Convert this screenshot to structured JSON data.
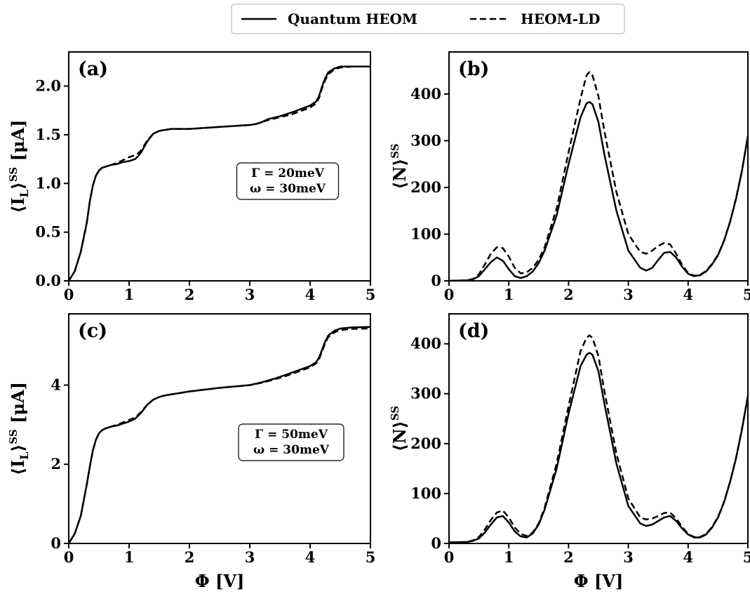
{
  "legend": {
    "entries": [
      {
        "label": "Quantum HEOM",
        "dash": "solid"
      },
      {
        "label": "HEOM-LD",
        "dash": "dashed"
      }
    ],
    "placement": "top-center"
  },
  "chart_data": [
    {
      "type": "line",
      "panel_label": "(a)",
      "xlabel": "",
      "ylabel": "⟨I_L⟩^SS [μA]",
      "ylabel_main": "⟨I",
      "ylabel_sub": "L",
      "ylabel_close": "⟩",
      "ylabel_sup": "SS",
      "ylabel_unit": " [μA]",
      "xlim": [
        0,
        5
      ],
      "ylim": [
        0,
        2.35
      ],
      "xticks": [
        0,
        1,
        2,
        3,
        4,
        5
      ],
      "yticks": [
        0.0,
        0.5,
        1.0,
        1.5,
        2.0
      ],
      "ytick_labels": [
        "0.0",
        "0.5",
        "1.0",
        "1.5",
        "2.0"
      ],
      "annotation": [
        "Γ = 20meV",
        "ω = 30meV"
      ],
      "grid": false,
      "series": [
        {
          "name": "Quantum HEOM",
          "dash": "solid",
          "x": [
            0,
            0.1,
            0.2,
            0.3,
            0.35,
            0.4,
            0.45,
            0.5,
            0.55,
            0.6,
            0.7,
            0.8,
            0.9,
            1.0,
            1.1,
            1.15,
            1.2,
            1.3,
            1.4,
            1.5,
            1.7,
            2.0,
            2.5,
            3.0,
            3.1,
            3.2,
            3.3,
            3.5,
            3.7,
            4.0,
            4.1,
            4.15,
            4.2,
            4.25,
            4.3,
            4.4,
            4.5,
            4.7,
            5.0
          ],
          "y": [
            0.0,
            0.1,
            0.3,
            0.6,
            0.82,
            0.98,
            1.08,
            1.13,
            1.16,
            1.17,
            1.19,
            1.2,
            1.22,
            1.23,
            1.25,
            1.28,
            1.32,
            1.43,
            1.51,
            1.54,
            1.56,
            1.56,
            1.58,
            1.6,
            1.61,
            1.63,
            1.66,
            1.69,
            1.73,
            1.8,
            1.84,
            1.9,
            2.0,
            2.08,
            2.14,
            2.18,
            2.2,
            2.2,
            2.2
          ]
        },
        {
          "name": "HEOM-LD",
          "dash": "dashed",
          "x": [
            0,
            0.1,
            0.2,
            0.3,
            0.35,
            0.4,
            0.45,
            0.5,
            0.55,
            0.6,
            0.7,
            0.8,
            0.9,
            1.0,
            1.1,
            1.15,
            1.2,
            1.3,
            1.4,
            1.5,
            1.7,
            2.0,
            2.5,
            3.0,
            3.1,
            3.2,
            3.3,
            3.5,
            3.7,
            4.0,
            4.1,
            4.15,
            4.2,
            4.25,
            4.3,
            4.4,
            4.5,
            4.7,
            5.0
          ],
          "y": [
            0.0,
            0.1,
            0.3,
            0.6,
            0.82,
            0.98,
            1.08,
            1.13,
            1.16,
            1.17,
            1.19,
            1.21,
            1.24,
            1.27,
            1.29,
            1.31,
            1.34,
            1.44,
            1.51,
            1.54,
            1.56,
            1.56,
            1.58,
            1.6,
            1.61,
            1.63,
            1.65,
            1.68,
            1.71,
            1.78,
            1.82,
            1.88,
            1.98,
            2.06,
            2.12,
            2.17,
            2.19,
            2.2,
            2.2
          ]
        }
      ]
    },
    {
      "type": "line",
      "panel_label": "(b)",
      "xlabel": "",
      "ylabel": "⟨N⟩^SS",
      "ylabel_main": "⟨N⟩",
      "ylabel_sub": "",
      "ylabel_close": "",
      "ylabel_sup": "SS",
      "ylabel_unit": "",
      "xlim": [
        0,
        5
      ],
      "ylim": [
        0,
        490
      ],
      "xticks": [
        0,
        1,
        2,
        3,
        4,
        5
      ],
      "yticks": [
        0,
        100,
        200,
        300,
        400
      ],
      "ytick_labels": [
        "0",
        "100",
        "200",
        "300",
        "400"
      ],
      "annotation": [],
      "grid": false,
      "series": [
        {
          "name": "Quantum HEOM",
          "dash": "solid",
          "x": [
            0,
            0.3,
            0.4,
            0.5,
            0.6,
            0.7,
            0.8,
            0.9,
            1.0,
            1.1,
            1.2,
            1.3,
            1.4,
            1.5,
            1.6,
            1.8,
            2.0,
            2.2,
            2.3,
            2.35,
            2.4,
            2.5,
            2.6,
            2.8,
            3.0,
            3.2,
            3.3,
            3.4,
            3.5,
            3.6,
            3.7,
            3.8,
            3.9,
            4.0,
            4.1,
            4.2,
            4.3,
            4.4,
            4.5,
            4.6,
            4.7,
            4.8,
            4.9,
            5.0
          ],
          "y": [
            0,
            1,
            3,
            10,
            25,
            40,
            50,
            43,
            25,
            10,
            6,
            10,
            20,
            38,
            65,
            140,
            250,
            350,
            380,
            383,
            378,
            340,
            270,
            150,
            65,
            28,
            22,
            28,
            45,
            60,
            62,
            50,
            30,
            15,
            10,
            12,
            20,
            35,
            55,
            85,
            125,
            175,
            235,
            310
          ]
        },
        {
          "name": "HEOM-LD",
          "dash": "dashed",
          "x": [
            0,
            0.3,
            0.4,
            0.5,
            0.6,
            0.7,
            0.8,
            0.9,
            1.0,
            1.1,
            1.2,
            1.3,
            1.4,
            1.5,
            1.6,
            1.8,
            2.0,
            2.2,
            2.3,
            2.35,
            2.4,
            2.5,
            2.6,
            2.8,
            3.0,
            3.2,
            3.3,
            3.4,
            3.5,
            3.6,
            3.7,
            3.8,
            3.9,
            4.0,
            4.1,
            4.2,
            4.3,
            4.4,
            4.5,
            4.6,
            4.7,
            4.8,
            4.9,
            5.0
          ],
          "y": [
            0,
            1,
            4,
            14,
            35,
            58,
            72,
            70,
            52,
            28,
            16,
            18,
            28,
            45,
            72,
            155,
            275,
            390,
            440,
            447,
            440,
            395,
            320,
            190,
            100,
            62,
            58,
            65,
            75,
            81,
            78,
            58,
            34,
            17,
            11,
            13,
            21,
            36,
            56,
            86,
            126,
            176,
            236,
            310
          ]
        }
      ]
    },
    {
      "type": "line",
      "panel_label": "(c)",
      "xlabel": "Φ [V]",
      "ylabel": "⟨I_L⟩^SS [μA]",
      "ylabel_main": "⟨I",
      "ylabel_sub": "L",
      "ylabel_close": "⟩",
      "ylabel_sup": "SS",
      "ylabel_unit": " [μA]",
      "xlim": [
        0,
        5
      ],
      "ylim": [
        0,
        5.8
      ],
      "xticks": [
        0,
        1,
        2,
        3,
        4,
        5
      ],
      "yticks": [
        0,
        2,
        4
      ],
      "ytick_labels": [
        "0",
        "2",
        "4"
      ],
      "annotation": [
        "Γ = 50meV",
        "ω = 30meV"
      ],
      "grid": false,
      "series": [
        {
          "name": "Quantum HEOM",
          "dash": "solid",
          "x": [
            0,
            0.1,
            0.2,
            0.3,
            0.35,
            0.4,
            0.45,
            0.5,
            0.55,
            0.6,
            0.7,
            0.8,
            0.9,
            1.0,
            1.1,
            1.2,
            1.3,
            1.4,
            1.5,
            1.6,
            1.8,
            2.0,
            2.5,
            3.0,
            3.2,
            3.4,
            3.6,
            3.8,
            4.0,
            4.1,
            4.15,
            4.2,
            4.25,
            4.3,
            4.4,
            4.5,
            4.7,
            5.0
          ],
          "y": [
            0.0,
            0.25,
            0.7,
            1.5,
            1.95,
            2.35,
            2.62,
            2.78,
            2.86,
            2.9,
            2.95,
            2.98,
            3.03,
            3.08,
            3.15,
            3.3,
            3.5,
            3.63,
            3.7,
            3.74,
            3.79,
            3.84,
            3.93,
            4.0,
            4.07,
            4.16,
            4.26,
            4.37,
            4.48,
            4.58,
            4.7,
            4.9,
            5.1,
            5.25,
            5.37,
            5.43,
            5.46,
            5.47
          ]
        },
        {
          "name": "HEOM-LD",
          "dash": "dashed",
          "x": [
            0,
            0.1,
            0.2,
            0.3,
            0.35,
            0.4,
            0.45,
            0.5,
            0.55,
            0.6,
            0.7,
            0.8,
            0.9,
            1.0,
            1.1,
            1.2,
            1.3,
            1.4,
            1.5,
            1.6,
            1.8,
            2.0,
            2.5,
            3.0,
            3.2,
            3.4,
            3.6,
            3.8,
            4.0,
            4.1,
            4.15,
            4.2,
            4.25,
            4.3,
            4.4,
            4.5,
            4.7,
            5.0
          ],
          "y": [
            0.0,
            0.25,
            0.7,
            1.5,
            1.95,
            2.35,
            2.62,
            2.78,
            2.86,
            2.9,
            2.95,
            3.0,
            3.06,
            3.12,
            3.18,
            3.32,
            3.51,
            3.63,
            3.7,
            3.74,
            3.79,
            3.84,
            3.93,
            4.0,
            4.06,
            4.14,
            4.23,
            4.34,
            4.45,
            4.55,
            4.66,
            4.86,
            5.06,
            5.21,
            5.33,
            5.39,
            5.42,
            5.43
          ]
        }
      ]
    },
    {
      "type": "line",
      "panel_label": "(d)",
      "xlabel": "Φ [V]",
      "ylabel": "⟨N⟩^SS",
      "ylabel_main": "⟨N⟩",
      "ylabel_sub": "",
      "ylabel_close": "",
      "ylabel_sup": "SS",
      "ylabel_unit": "",
      "xlim": [
        0,
        5
      ],
      "ylim": [
        0,
        460
      ],
      "xticks": [
        0,
        1,
        2,
        3,
        4,
        5
      ],
      "yticks": [
        0,
        100,
        200,
        300,
        400
      ],
      "ytick_labels": [
        "0",
        "100",
        "200",
        "300",
        "400"
      ],
      "annotation": [],
      "grid": false,
      "series": [
        {
          "name": "Quantum HEOM",
          "dash": "solid",
          "x": [
            0,
            0.3,
            0.4,
            0.5,
            0.6,
            0.7,
            0.8,
            0.9,
            1.0,
            1.1,
            1.2,
            1.3,
            1.4,
            1.5,
            1.6,
            1.8,
            2.0,
            2.2,
            2.3,
            2.35,
            2.4,
            2.5,
            2.6,
            2.8,
            3.0,
            3.2,
            3.3,
            3.4,
            3.5,
            3.6,
            3.7,
            3.8,
            3.9,
            4.0,
            4.1,
            4.2,
            4.3,
            4.4,
            4.5,
            4.6,
            4.7,
            4.8,
            4.9,
            5.0
          ],
          "y": [
            2,
            3,
            5,
            10,
            22,
            38,
            52,
            55,
            42,
            24,
            14,
            12,
            20,
            38,
            68,
            150,
            260,
            355,
            378,
            382,
            378,
            345,
            280,
            160,
            75,
            40,
            35,
            38,
            45,
            52,
            55,
            45,
            30,
            18,
            12,
            12,
            18,
            32,
            52,
            82,
            122,
            170,
            228,
            295
          ]
        },
        {
          "name": "HEOM-LD",
          "dash": "dashed",
          "x": [
            0,
            0.3,
            0.4,
            0.5,
            0.6,
            0.7,
            0.8,
            0.9,
            1.0,
            1.1,
            1.2,
            1.3,
            1.4,
            1.5,
            1.6,
            1.8,
            2.0,
            2.2,
            2.3,
            2.35,
            2.4,
            2.5,
            2.6,
            2.8,
            3.0,
            3.2,
            3.3,
            3.4,
            3.5,
            3.6,
            3.7,
            3.8,
            3.9,
            4.0,
            4.1,
            4.2,
            4.3,
            4.4,
            4.5,
            4.6,
            4.7,
            4.8,
            4.9,
            5.0
          ],
          "y": [
            2,
            3,
            6,
            13,
            28,
            47,
            62,
            66,
            52,
            32,
            19,
            15,
            22,
            40,
            72,
            160,
            275,
            385,
            412,
            417,
            412,
            375,
            305,
            180,
            90,
            52,
            48,
            50,
            55,
            61,
            62,
            50,
            33,
            19,
            13,
            13,
            19,
            33,
            53,
            83,
            123,
            171,
            229,
            296
          ]
        }
      ]
    }
  ]
}
